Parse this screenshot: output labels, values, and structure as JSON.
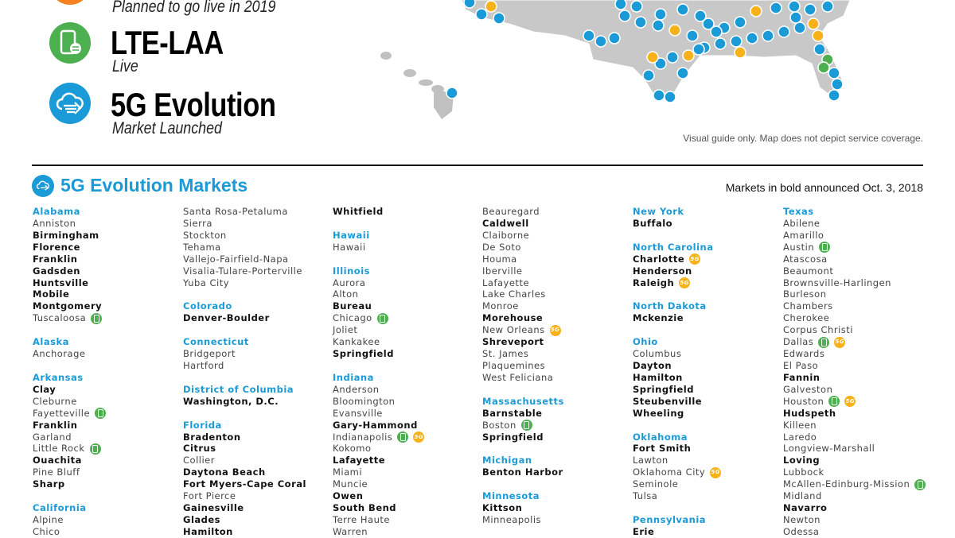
{
  "legend": {
    "planned_subtitle": "Planned to go live in 2019",
    "lte_laa": {
      "title": "LTE-LAA",
      "subtitle": "Live"
    },
    "evolution": {
      "title": "5G Evolution",
      "subtitle": "Market Launched"
    }
  },
  "map": {
    "disclaimer": "Visual guide only.  Map does not depict service coverage."
  },
  "markets": {
    "title": "5G Evolution Markets",
    "announcement": "Markets in bold announced Oct. 3, 2018",
    "badge_5g_label": "5G",
    "colors": {
      "state": "#1a9ad6",
      "lte": "#4caf50",
      "fiveg": "#f7b21a",
      "evolution": "#1a9ad6",
      "planned": "#f5821f"
    },
    "columns": [
      [
        {
          "s": "Alabama"
        },
        {
          "m": "Anniston"
        },
        {
          "m": "Birmingham",
          "b": true
        },
        {
          "m": "Florence",
          "b": true
        },
        {
          "m": "Franklin",
          "b": true
        },
        {
          "m": "Gadsden",
          "b": true
        },
        {
          "m": "Huntsville",
          "b": true
        },
        {
          "m": "Mobile",
          "b": true
        },
        {
          "m": "Montgomery",
          "b": true
        },
        {
          "m": "Tuscaloosa",
          "lte": true
        },
        {},
        {
          "s": "Alaska"
        },
        {
          "m": "Anchorage"
        },
        {},
        {
          "s": "Arkansas"
        },
        {
          "m": "Clay",
          "b": true
        },
        {
          "m": "Cleburne"
        },
        {
          "m": "Fayetteville",
          "lte": true
        },
        {
          "m": "Franklin",
          "b": true
        },
        {
          "m": "Garland"
        },
        {
          "m": "Little Rock",
          "lte": true
        },
        {
          "m": "Ouachita",
          "b": true
        },
        {
          "m": "Pine Bluff"
        },
        {
          "m": "Sharp",
          "b": true
        },
        {},
        {
          "s": "California"
        },
        {
          "m": "Alpine"
        },
        {
          "m": "Chico"
        }
      ],
      [
        {
          "m": "Santa Rosa-Petaluma"
        },
        {
          "m": "Sierra"
        },
        {
          "m": "Stockton"
        },
        {
          "m": "Tehama"
        },
        {
          "m": "Vallejo-Fairfield-Napa"
        },
        {
          "m": "Visalia-Tulare-Porterville"
        },
        {
          "m": "Yuba City"
        },
        {},
        {
          "s": "Colorado"
        },
        {
          "m": "Denver-Boulder",
          "b": true
        },
        {},
        {
          "s": "Connecticut"
        },
        {
          "m": "Bridgeport"
        },
        {
          "m": "Hartford"
        },
        {},
        {
          "s": "District of Columbia"
        },
        {
          "m": "Washington, D.C.",
          "b": true
        },
        {},
        {
          "s": "Florida"
        },
        {
          "m": "Bradenton",
          "b": true
        },
        {
          "m": "Citrus",
          "b": true
        },
        {
          "m": "Collier"
        },
        {
          "m": "Daytona Beach",
          "b": true
        },
        {
          "m": "Fort Myers-Cape Coral",
          "b": true
        },
        {
          "m": "Fort Pierce"
        },
        {
          "m": "Gainesville",
          "b": true
        },
        {
          "m": "Glades",
          "b": true
        },
        {
          "m": "Hamilton",
          "b": true
        }
      ],
      [
        {
          "m": "Whitfield",
          "b": true
        },
        {},
        {
          "s": "Hawaii"
        },
        {
          "m": "Hawaii"
        },
        {},
        {
          "s": "Illinois"
        },
        {
          "m": "Aurora"
        },
        {
          "m": "Alton"
        },
        {
          "m": "Bureau",
          "b": true
        },
        {
          "m": "Chicago",
          "lte": true
        },
        {
          "m": "Joliet"
        },
        {
          "m": "Kankakee"
        },
        {
          "m": "Springfield",
          "b": true
        },
        {},
        {
          "s": "Indiana"
        },
        {
          "m": "Anderson"
        },
        {
          "m": "Bloomington"
        },
        {
          "m": "Evansville"
        },
        {
          "m": "Gary-Hammond",
          "b": true
        },
        {
          "m": "Indianapolis",
          "lte": true,
          "g5": true
        },
        {
          "m": "Kokomo"
        },
        {
          "m": "Lafayette",
          "b": true
        },
        {
          "m": "Miami"
        },
        {
          "m": "Muncie"
        },
        {
          "m": "Owen",
          "b": true
        },
        {
          "m": "South Bend",
          "b": true
        },
        {
          "m": "Terre Haute"
        },
        {
          "m": "Warren"
        }
      ],
      [
        {
          "m": "Beauregard"
        },
        {
          "m": "Caldwell",
          "b": true
        },
        {
          "m": "Claiborne"
        },
        {
          "m": "De Soto"
        },
        {
          "m": "Houma"
        },
        {
          "m": "Iberville"
        },
        {
          "m": "Lafayette"
        },
        {
          "m": "Lake Charles"
        },
        {
          "m": "Monroe"
        },
        {
          "m": "Morehouse",
          "b": true
        },
        {
          "m": "New Orleans",
          "g5": true
        },
        {
          "m": "Shreveport",
          "b": true
        },
        {
          "m": "St. James"
        },
        {
          "m": "Plaquemines"
        },
        {
          "m": "West Feliciana"
        },
        {},
        {
          "s": "Massachusetts"
        },
        {
          "m": "Barnstable",
          "b": true
        },
        {
          "m": "Boston",
          "lte": true
        },
        {
          "m": "Springfield",
          "b": true
        },
        {},
        {
          "s": "Michigan"
        },
        {
          "m": "Benton Harbor",
          "b": true
        },
        {},
        {
          "s": "Minnesota"
        },
        {
          "m": "Kittson",
          "b": true
        },
        {
          "m": "Minneapolis"
        }
      ],
      [
        {
          "s": "New York"
        },
        {
          "m": "Buffalo",
          "b": true
        },
        {},
        {
          "s": "North Carolina"
        },
        {
          "m": "Charlotte",
          "b": true,
          "g5": true
        },
        {
          "m": "Henderson",
          "b": true
        },
        {
          "m": "Raleigh",
          "b": true,
          "g5": true
        },
        {},
        {
          "s": "North Dakota"
        },
        {
          "m": "Mckenzie",
          "b": true
        },
        {},
        {
          "s": "Ohio"
        },
        {
          "m": "Columbus"
        },
        {
          "m": "Dayton",
          "b": true
        },
        {
          "m": "Hamilton",
          "b": true
        },
        {
          "m": "Springfield",
          "b": true
        },
        {
          "m": "Steubenville",
          "b": true
        },
        {
          "m": "Wheeling",
          "b": true
        },
        {},
        {
          "s": "Oklahoma"
        },
        {
          "m": "Fort Smith",
          "b": true
        },
        {
          "m": "Lawton"
        },
        {
          "m": "Oklahoma City",
          "g5": true
        },
        {
          "m": "Seminole"
        },
        {
          "m": "Tulsa"
        },
        {},
        {
          "s": "Pennsylvania"
        },
        {
          "m": "Erie",
          "b": true
        }
      ],
      [
        {
          "s": "Texas"
        },
        {
          "m": "Abilene"
        },
        {
          "m": "Amarillo"
        },
        {
          "m": "Austin",
          "lte": true
        },
        {
          "m": "Atascosa"
        },
        {
          "m": "Beaumont"
        },
        {
          "m": "Brownsville-Harlingen"
        },
        {
          "m": "Burleson"
        },
        {
          "m": "Chambers"
        },
        {
          "m": "Cherokee"
        },
        {
          "m": "Corpus Christi"
        },
        {
          "m": "Dallas",
          "lte": true,
          "g5": true
        },
        {
          "m": "Edwards"
        },
        {
          "m": "El Paso"
        },
        {
          "m": "Fannin",
          "b": true
        },
        {
          "m": "Galveston"
        },
        {
          "m": "Houston",
          "lte": true,
          "g5": true
        },
        {
          "m": "Hudspeth",
          "b": true
        },
        {
          "m": "Killeen"
        },
        {
          "m": "Laredo"
        },
        {
          "m": "Longview-Marshall"
        },
        {
          "m": "Loving",
          "b": true
        },
        {
          "m": "Lubbock"
        },
        {
          "m": "McAllen-Edinburg-Mission",
          "lte": true
        },
        {
          "m": "Midland"
        },
        {
          "m": "Navarro",
          "b": true
        },
        {
          "m": "Newton"
        },
        {
          "m": "Odessa"
        }
      ]
    ]
  }
}
